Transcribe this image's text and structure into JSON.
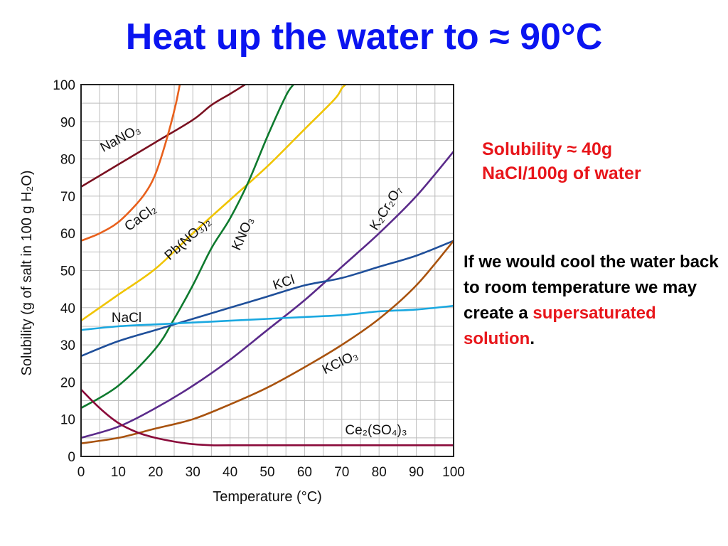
{
  "slide": {
    "title": "Heat up the water to ≈ 90°C",
    "note_solubility_line1": "Solubility ≈ 40g",
    "note_solubility_line2": "NaCl/100g of water",
    "note_cool_text": "If we would cool the water back to room temperature we may create a ",
    "note_cool_highlight": "supersaturated solution",
    "note_cool_end": "."
  },
  "chart_data": {
    "type": "line",
    "xlabel": "Temperature (°C)",
    "ylabel": "Solubility (g of salt in 100 g H₂O)",
    "xlim": [
      0,
      100
    ],
    "ylim": [
      0,
      100
    ],
    "xticks": [
      0,
      10,
      20,
      30,
      40,
      50,
      60,
      70,
      80,
      90,
      100
    ],
    "yticks": [
      0,
      10,
      20,
      30,
      40,
      50,
      60,
      70,
      80,
      90,
      100
    ],
    "grid": true,
    "series": [
      {
        "name": "NaNO₃",
        "color": "#7a1020",
        "points": [
          [
            0,
            72.5
          ],
          [
            10,
            78.5
          ],
          [
            20,
            84.5
          ],
          [
            30,
            90.5
          ],
          [
            35,
            94.5
          ],
          [
            40,
            97.5
          ],
          [
            44,
            100
          ]
        ]
      },
      {
        "name": "CaCl₂",
        "color": "#e8601c",
        "points": [
          [
            0,
            58
          ],
          [
            5,
            60
          ],
          [
            10,
            63
          ],
          [
            15,
            68
          ],
          [
            18,
            72
          ],
          [
            20,
            76
          ],
          [
            22,
            82
          ],
          [
            24,
            89
          ],
          [
            25.5,
            95
          ],
          [
            26.5,
            100
          ]
        ]
      },
      {
        "name": "Pb(NO₃)₂",
        "color": "#f0c400",
        "points": [
          [
            0,
            36.5
          ],
          [
            10,
            43.5
          ],
          [
            20,
            50.5
          ],
          [
            30,
            60
          ],
          [
            40,
            69
          ],
          [
            50,
            78
          ],
          [
            60,
            88
          ],
          [
            68,
            96
          ],
          [
            70,
            99
          ],
          [
            71,
            100
          ]
        ]
      },
      {
        "name": "KNO₃",
        "color": "#0e7a2e",
        "points": [
          [
            0,
            13
          ],
          [
            10,
            19
          ],
          [
            20,
            29
          ],
          [
            25,
            37
          ],
          [
            30,
            46
          ],
          [
            35,
            56
          ],
          [
            40,
            64
          ],
          [
            45,
            74
          ],
          [
            50,
            86
          ],
          [
            55,
            97
          ],
          [
            57,
            100
          ]
        ]
      },
      {
        "name": "K₂Cr₂O₇",
        "color": "#5a2a8a",
        "points": [
          [
            0,
            5
          ],
          [
            10,
            8
          ],
          [
            20,
            13
          ],
          [
            30,
            19
          ],
          [
            40,
            26
          ],
          [
            50,
            34
          ],
          [
            60,
            42
          ],
          [
            70,
            51
          ],
          [
            80,
            60
          ],
          [
            90,
            70
          ],
          [
            100,
            82
          ]
        ]
      },
      {
        "name": "KCl",
        "color": "#1f4f9a",
        "points": [
          [
            0,
            27
          ],
          [
            10,
            31
          ],
          [
            20,
            34
          ],
          [
            30,
            37
          ],
          [
            40,
            40
          ],
          [
            50,
            43
          ],
          [
            60,
            46
          ],
          [
            70,
            48
          ],
          [
            80,
            51
          ],
          [
            90,
            54
          ],
          [
            100,
            58
          ]
        ]
      },
      {
        "name": "NaCl",
        "color": "#1aa8e0",
        "points": [
          [
            0,
            34
          ],
          [
            10,
            35
          ],
          [
            20,
            35.5
          ],
          [
            30,
            36
          ],
          [
            40,
            36.5
          ],
          [
            50,
            37
          ],
          [
            60,
            37.5
          ],
          [
            70,
            38
          ],
          [
            80,
            39
          ],
          [
            90,
            39.5
          ],
          [
            100,
            40.5
          ]
        ]
      },
      {
        "name": "KClO₃",
        "color": "#a8520e",
        "points": [
          [
            0,
            3.5
          ],
          [
            10,
            5
          ],
          [
            20,
            7.5
          ],
          [
            30,
            10
          ],
          [
            40,
            14
          ],
          [
            50,
            18.5
          ],
          [
            60,
            24
          ],
          [
            70,
            30
          ],
          [
            80,
            37
          ],
          [
            90,
            46
          ],
          [
            100,
            58
          ]
        ]
      },
      {
        "name": "Ce₂(SO₄)₃",
        "color": "#8a0a3a",
        "points": [
          [
            0,
            18
          ],
          [
            5,
            13
          ],
          [
            10,
            9
          ],
          [
            15,
            6.5
          ],
          [
            20,
            5
          ],
          [
            25,
            4
          ],
          [
            30,
            3.3
          ],
          [
            35,
            3
          ],
          [
            40,
            3
          ],
          [
            60,
            3
          ],
          [
            80,
            3
          ],
          [
            100,
            3
          ]
        ]
      }
    ]
  }
}
